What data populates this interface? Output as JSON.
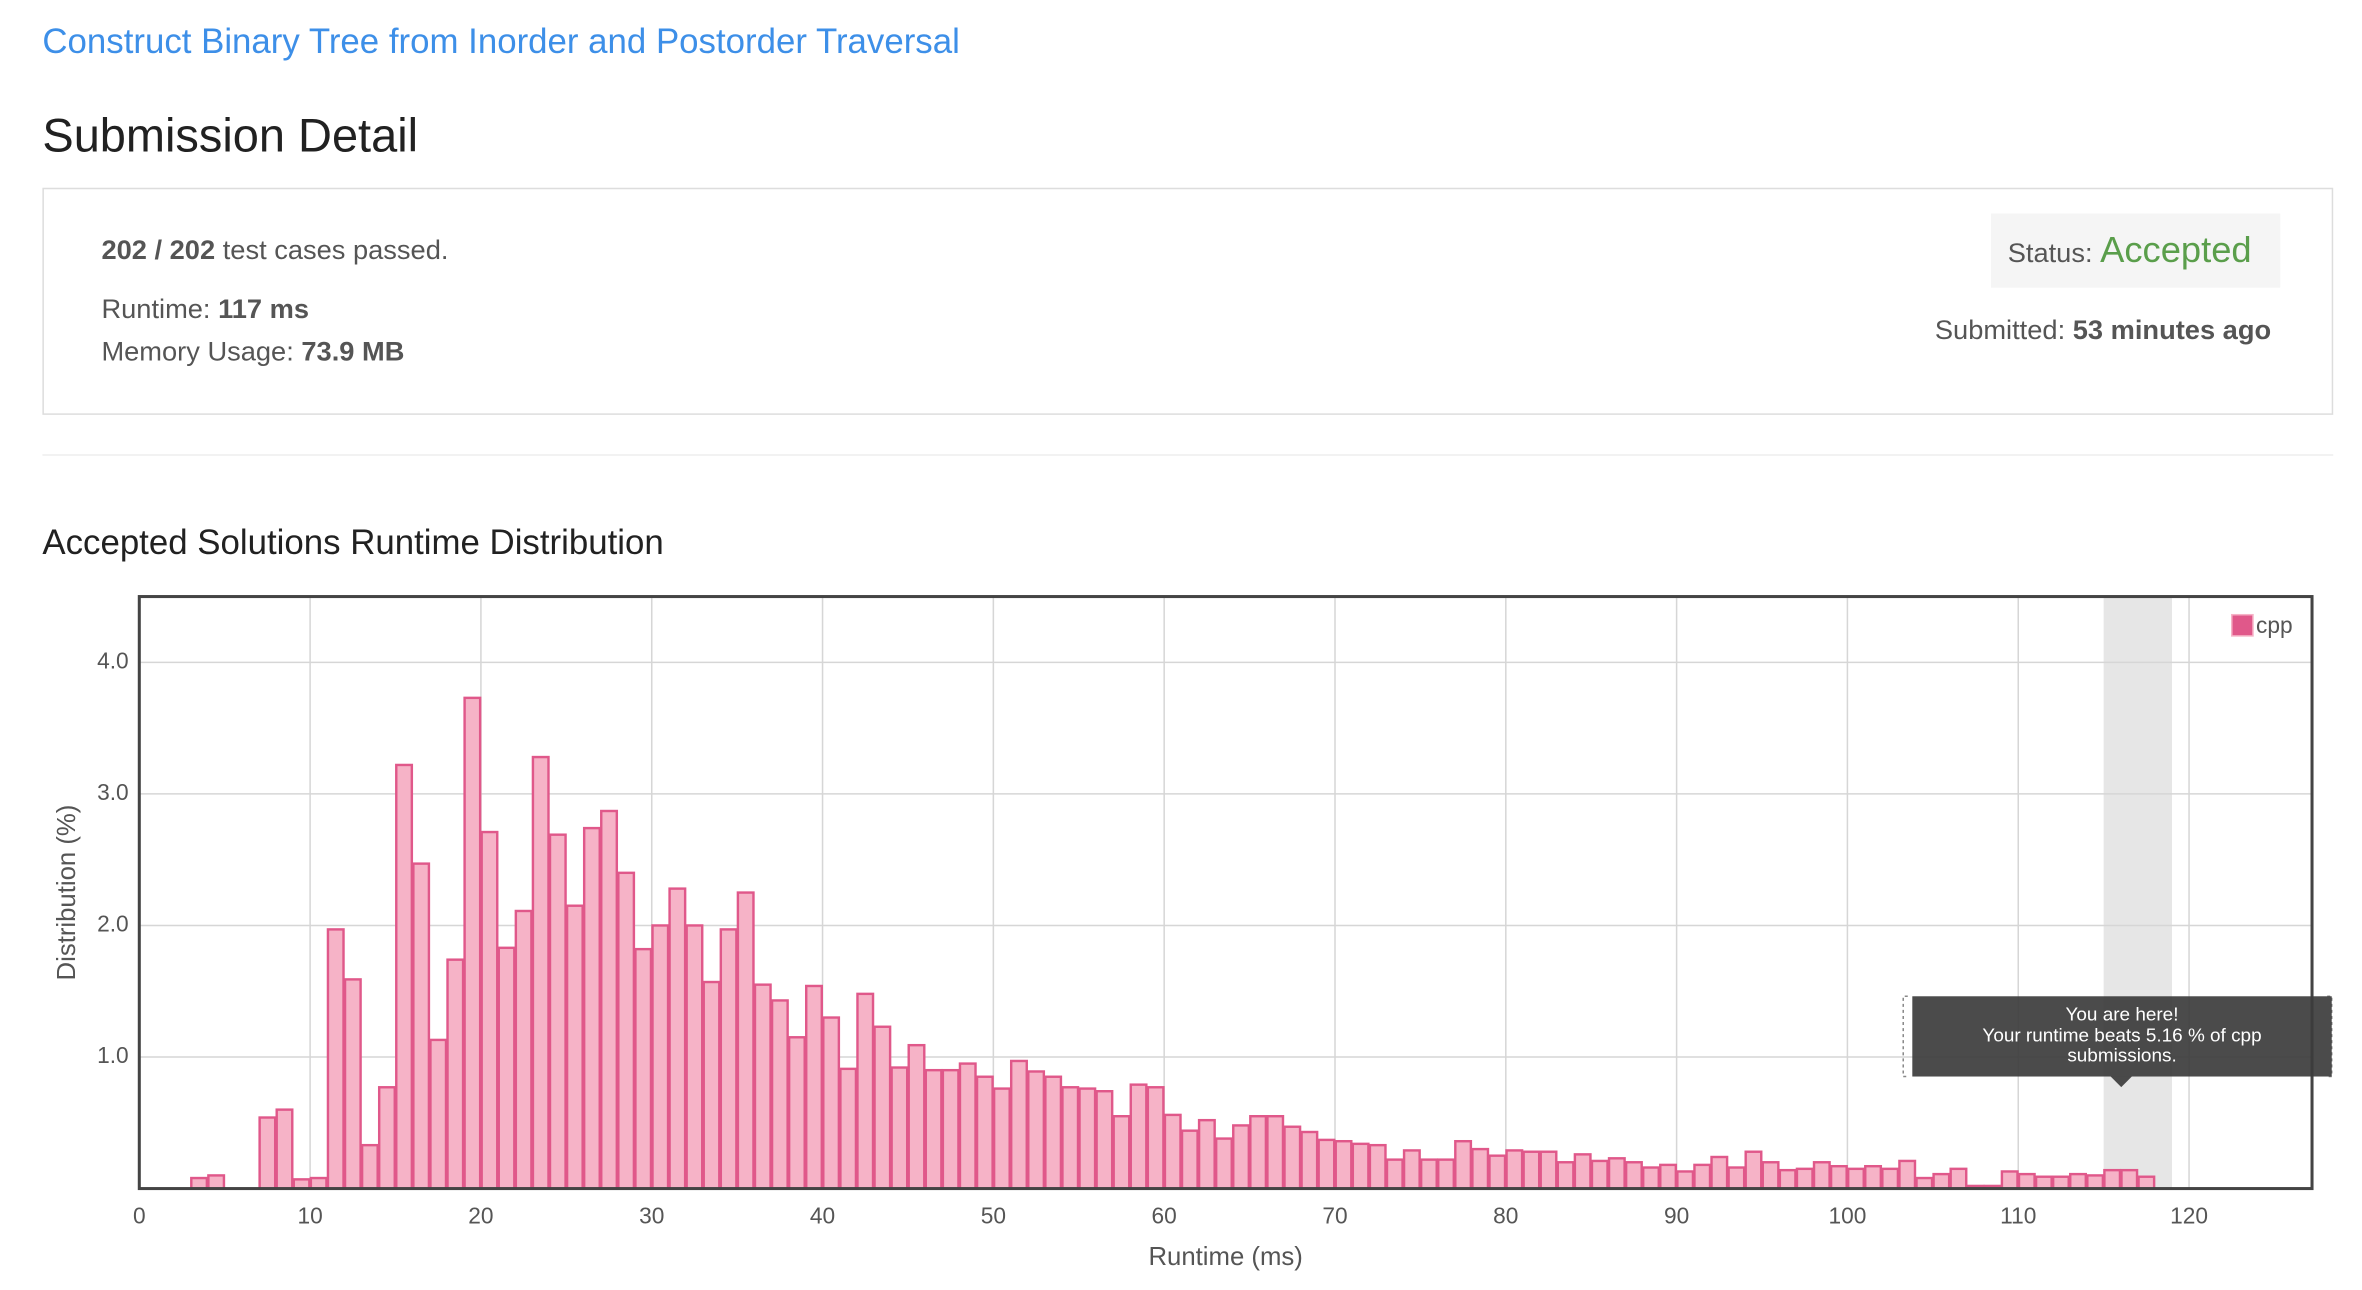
{
  "problem_title": "Construct Binary Tree from Inorder and Postorder Traversal",
  "heading": "Submission Detail",
  "summary": {
    "test_cases": "202 / 202",
    "test_cases_text": "test cases passed.",
    "runtime_label": "Runtime:",
    "runtime": "117 ms",
    "memory_label": "Memory Usage:",
    "memory": "73.9 MB",
    "status_label": "Status:",
    "status": "Accepted",
    "submitted_label": "Submitted:",
    "submitted": "53 minutes ago"
  },
  "chart_data": {
    "type": "histogram",
    "title": "Accepted Solutions Runtime Distribution",
    "x_label": "Runtime (ms)",
    "y_label": "Distribution (%)",
    "bins": [
      3,
      4,
      5,
      6,
      7,
      8,
      9,
      10,
      11,
      12,
      13,
      14,
      15,
      16,
      17,
      18,
      19,
      20,
      21,
      22,
      23,
      24,
      25,
      26,
      27,
      28,
      29,
      30,
      31,
      32,
      33,
      34,
      35,
      36,
      37,
      38,
      39,
      40,
      41,
      42,
      43,
      44,
      45,
      46,
      47,
      48,
      49,
      50,
      51,
      52,
      53,
      54,
      55,
      56,
      57,
      58,
      59,
      60,
      61,
      62,
      63,
      64,
      65,
      66,
      67,
      68,
      69,
      70,
      71,
      72,
      73,
      74,
      75,
      76,
      77,
      78,
      79,
      80,
      81,
      82,
      83,
      84,
      85,
      86,
      87,
      88,
      89,
      90,
      91,
      92,
      93,
      94,
      95,
      96,
      97,
      98,
      99,
      100,
      101,
      102,
      103,
      104,
      105,
      106,
      107,
      108,
      109,
      110,
      111,
      112,
      113,
      114,
      115,
      116,
      117,
      118
    ],
    "series": [
      {
        "name": "cpp",
        "color": "#f6b3c7",
        "edgecolor": "#e0588a",
        "values": [
          0.08,
          0.1,
          0,
          0,
          0.54,
          0.6,
          0.07,
          0.08,
          1.97,
          1.59,
          0.33,
          0.77,
          3.22,
          2.47,
          1.13,
          1.74,
          3.73,
          2.71,
          1.83,
          2.11,
          3.28,
          2.69,
          2.15,
          2.74,
          2.87,
          2.4,
          1.82,
          2.0,
          2.28,
          2.0,
          1.57,
          1.97,
          2.25,
          1.55,
          1.43,
          1.15,
          1.54,
          1.3,
          0.91,
          1.48,
          1.23,
          0.92,
          1.09,
          0.9,
          0.9,
          0.95,
          0.85,
          0.76,
          0.97,
          0.89,
          0.85,
          0.77,
          0.76,
          0.74,
          0.55,
          0.79,
          0.77,
          0.56,
          0.44,
          0.52,
          0.38,
          0.48,
          0.55,
          0.55,
          0.47,
          0.43,
          0.37,
          0.36,
          0.34,
          0.33,
          0.22,
          0.29,
          0.22,
          0.22,
          0.36,
          0.3,
          0.25,
          0.29,
          0.28,
          0.28,
          0.2,
          0.26,
          0.21,
          0.23,
          0.2,
          0.16,
          0.18,
          0.13,
          0.18,
          0.24,
          0.16,
          0.28,
          0.2,
          0.14,
          0.15,
          0.2,
          0.17,
          0.15,
          0.17,
          0.15,
          0.21,
          0.08,
          0.11,
          0.15,
          0.02,
          0.02,
          0.13,
          0.11,
          0.09,
          0.09,
          0.11,
          0.1,
          0.14,
          0.14,
          0.09
        ]
      }
    ],
    "xlim": [
      0,
      127.2
    ],
    "ylim": [
      0,
      4.5
    ],
    "xticks": [
      0,
      10,
      20,
      30,
      40,
      50,
      60,
      70,
      80,
      90,
      100,
      110,
      120
    ],
    "yticks": [
      {
        "value": 1,
        "label": "1.0"
      },
      {
        "value": 2,
        "label": "2.0"
      },
      {
        "value": 3,
        "label": "3.0"
      },
      {
        "value": 4,
        "label": "4.0"
      }
    ],
    "grid": true,
    "legend": "upper right",
    "highlight_x": [
      115,
      119
    ],
    "tooltip": {
      "title": "You are here!",
      "text": "Your runtime beats 5.16 % of cpp submissions."
    }
  }
}
